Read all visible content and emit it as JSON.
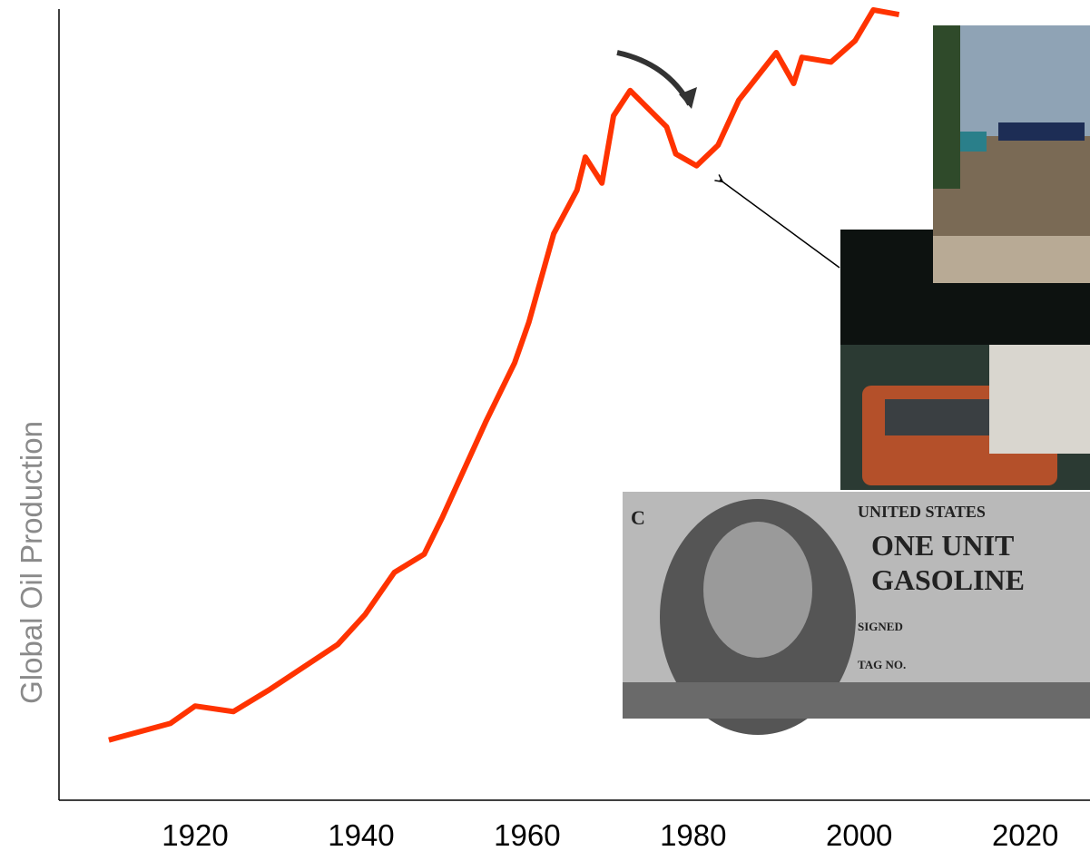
{
  "chart_data": {
    "type": "line",
    "y_label": "Global Oil Production",
    "x": [
      1909.6,
      1917,
      1920,
      1924.6,
      1929,
      1937.2,
      1940.5,
      1944,
      1947.6,
      1949.8,
      1955,
      1958.5,
      1960.2,
      1963.2,
      1966,
      1967,
      1969,
      1970.4,
      1972.4,
      1976.8,
      1977.9,
      1980.4,
      1983,
      1985.5,
      1990,
      1992.1,
      1993.1,
      1996.6,
      1999.5,
      2001.7,
      2004.8
    ],
    "series": [
      {
        "name": "Global Oil Production",
        "color": "#ff3300",
        "values": [
          7.6,
          9.7,
          11.9,
          11.2,
          14.0,
          19.7,
          23.5,
          28.8,
          31.1,
          35.8,
          47.8,
          55.3,
          60.4,
          71.6,
          77.1,
          81.3,
          78.0,
          86.5,
          89.7,
          85.1,
          81.7,
          80.2,
          82.8,
          88.5,
          94.5,
          90.6,
          93.9,
          93.3,
          96.0,
          99.9,
          99.3
        ]
      }
    ],
    "xlim": [
      1903.6,
      2027.8
    ],
    "xticks": [
      1920,
      1940,
      1960,
      1980,
      2000,
      2020
    ],
    "ylim": [
      0,
      100
    ],
    "coupon_text": [
      "C",
      "UNITED STATES",
      "ONE UNIT",
      "GASOLINE",
      "SIGNED",
      "TAG NO."
    ]
  }
}
